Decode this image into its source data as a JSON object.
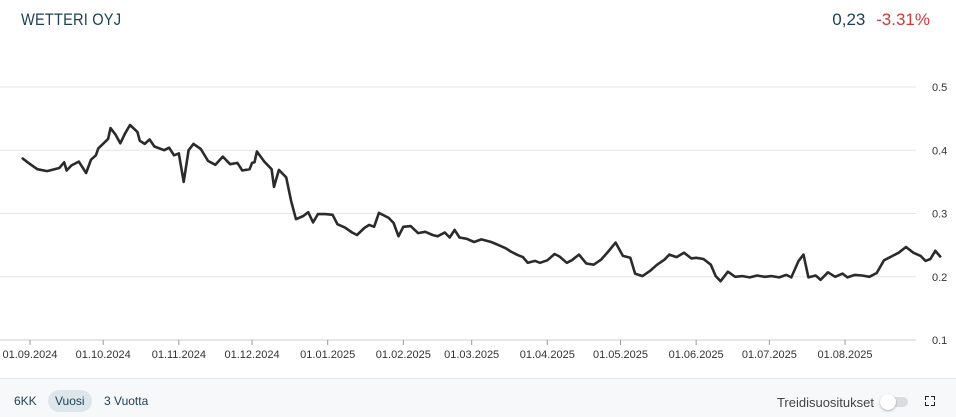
{
  "header": {
    "title": "WETTERI OYJ",
    "price": "0,23",
    "change": "-3.31%"
  },
  "colors": {
    "line": "#2b2b2b",
    "grid": "#e6e6e6",
    "change_negative": "#d0393a",
    "accent": "#1b3f55"
  },
  "footer": {
    "ranges": [
      {
        "label": "6KK",
        "active": false
      },
      {
        "label": "Vuosi",
        "active": true
      },
      {
        "label": "3 Vuotta",
        "active": false
      }
    ],
    "trend_label": "Treidisuositukset",
    "trend_toggle_on": false,
    "fullscreen_icon": "expand-icon"
  },
  "chart_data": {
    "type": "line",
    "ylim": [
      0.1,
      0.5
    ],
    "yticks": [
      0.5,
      0.4,
      0.3,
      0.2,
      0.1
    ],
    "ytick_labels": [
      "0.5",
      "0.4",
      "0.3",
      "0.2",
      "0.1"
    ],
    "xticks": [
      "2024-09-01",
      "2024-10-01",
      "2024-11-01",
      "2024-12-01",
      "2025-01-01",
      "2025-02-01",
      "2025-03-01",
      "2025-04-01",
      "2025-05-01",
      "2025-06-01",
      "2025-07-01",
      "2025-08-01"
    ],
    "xtick_labels": [
      "01.09.2024",
      "01.10.2024",
      "01.11.2024",
      "01.12.2024",
      "01.01.2025",
      "01.02.2025",
      "01.03.2025",
      "01.04.2025",
      "01.05.2025",
      "01.06.2025",
      "01.07.2025",
      "01.08.2025"
    ],
    "grid": true,
    "series": [
      {
        "points": [
          [
            "2024-08-29",
            0.387
          ],
          [
            "2024-08-31",
            0.381
          ],
          [
            "2024-09-04",
            0.37
          ],
          [
            "2024-09-08",
            0.367
          ],
          [
            "2024-09-13",
            0.372
          ],
          [
            "2024-09-15",
            0.381
          ],
          [
            "2024-09-16",
            0.368
          ],
          [
            "2024-09-18",
            0.376
          ],
          [
            "2024-09-21",
            0.382
          ],
          [
            "2024-09-24",
            0.364
          ],
          [
            "2024-09-26",
            0.385
          ],
          [
            "2024-09-28",
            0.392
          ],
          [
            "2024-09-29",
            0.403
          ],
          [
            "2024-10-03",
            0.418
          ],
          [
            "2024-10-04",
            0.435
          ],
          [
            "2024-10-06",
            0.425
          ],
          [
            "2024-10-08",
            0.411
          ],
          [
            "2024-10-10",
            0.427
          ],
          [
            "2024-10-12",
            0.44
          ],
          [
            "2024-10-15",
            0.429
          ],
          [
            "2024-10-16",
            0.415
          ],
          [
            "2024-10-18",
            0.41
          ],
          [
            "2024-10-20",
            0.417
          ],
          [
            "2024-10-22",
            0.406
          ],
          [
            "2024-10-26",
            0.4
          ],
          [
            "2024-10-28",
            0.404
          ],
          [
            "2024-10-30",
            0.392
          ],
          [
            "2024-11-01",
            0.395
          ],
          [
            "2024-11-03",
            0.35
          ],
          [
            "2024-11-05",
            0.4
          ],
          [
            "2024-11-07",
            0.41
          ],
          [
            "2024-11-10",
            0.402
          ],
          [
            "2024-11-13",
            0.383
          ],
          [
            "2024-11-16",
            0.377
          ],
          [
            "2024-11-19",
            0.39
          ],
          [
            "2024-11-22",
            0.378
          ],
          [
            "2024-11-25",
            0.38
          ],
          [
            "2024-11-27",
            0.368
          ],
          [
            "2024-11-30",
            0.37
          ],
          [
            "2024-12-01",
            0.38
          ],
          [
            "2024-12-02",
            0.381
          ],
          [
            "2024-12-03",
            0.398
          ],
          [
            "2024-12-06",
            0.382
          ],
          [
            "2024-12-09",
            0.37
          ],
          [
            "2024-12-10",
            0.342
          ],
          [
            "2024-12-12",
            0.369
          ],
          [
            "2024-12-15",
            0.357
          ],
          [
            "2024-12-17",
            0.32
          ],
          [
            "2024-12-19",
            0.291
          ],
          [
            "2024-12-22",
            0.296
          ],
          [
            "2024-12-24",
            0.302
          ],
          [
            "2024-12-26",
            0.286
          ],
          [
            "2024-12-28",
            0.299
          ],
          [
            "2024-12-31",
            0.299
          ],
          [
            "2025-01-03",
            0.298
          ],
          [
            "2025-01-05",
            0.283
          ],
          [
            "2025-01-08",
            0.278
          ],
          [
            "2025-01-11",
            0.27
          ],
          [
            "2025-01-13",
            0.266
          ],
          [
            "2025-01-16",
            0.277
          ],
          [
            "2025-01-18",
            0.282
          ],
          [
            "2025-01-20",
            0.279
          ],
          [
            "2025-01-22",
            0.301
          ],
          [
            "2025-01-26",
            0.293
          ],
          [
            "2025-01-28",
            0.285
          ],
          [
            "2025-01-30",
            0.264
          ],
          [
            "2025-02-01",
            0.279
          ],
          [
            "2025-02-04",
            0.28
          ],
          [
            "2025-02-07",
            0.269
          ],
          [
            "2025-02-10",
            0.271
          ],
          [
            "2025-02-13",
            0.266
          ],
          [
            "2025-02-15",
            0.264
          ],
          [
            "2025-02-18",
            0.27
          ],
          [
            "2025-02-20",
            0.262
          ],
          [
            "2025-02-22",
            0.274
          ],
          [
            "2025-02-24",
            0.262
          ],
          [
            "2025-02-27",
            0.26
          ],
          [
            "2025-03-02",
            0.255
          ],
          [
            "2025-03-05",
            0.259
          ],
          [
            "2025-03-09",
            0.255
          ],
          [
            "2025-03-12",
            0.25
          ],
          [
            "2025-03-15",
            0.245
          ],
          [
            "2025-03-17",
            0.24
          ],
          [
            "2025-03-20",
            0.234
          ],
          [
            "2025-03-22",
            0.231
          ],
          [
            "2025-03-24",
            0.222
          ],
          [
            "2025-03-27",
            0.225
          ],
          [
            "2025-03-29",
            0.222
          ],
          [
            "2025-04-01",
            0.226
          ],
          [
            "2025-04-04",
            0.236
          ],
          [
            "2025-04-06",
            0.232
          ],
          [
            "2025-04-09",
            0.222
          ],
          [
            "2025-04-11",
            0.226
          ],
          [
            "2025-04-14",
            0.235
          ],
          [
            "2025-04-17",
            0.221
          ],
          [
            "2025-04-20",
            0.219
          ],
          [
            "2025-04-23",
            0.227
          ],
          [
            "2025-04-26",
            0.24
          ],
          [
            "2025-04-29",
            0.254
          ],
          [
            "2025-05-02",
            0.233
          ],
          [
            "2025-05-05",
            0.23
          ],
          [
            "2025-05-07",
            0.205
          ],
          [
            "2025-05-10",
            0.201
          ],
          [
            "2025-05-13",
            0.209
          ],
          [
            "2025-05-16",
            0.219
          ],
          [
            "2025-05-19",
            0.227
          ],
          [
            "2025-05-21",
            0.235
          ],
          [
            "2025-05-24",
            0.231
          ],
          [
            "2025-05-27",
            0.238
          ],
          [
            "2025-05-30",
            0.229
          ],
          [
            "2025-06-01",
            0.23
          ],
          [
            "2025-06-04",
            0.228
          ],
          [
            "2025-06-07",
            0.219
          ],
          [
            "2025-06-09",
            0.201
          ],
          [
            "2025-06-11",
            0.193
          ],
          [
            "2025-06-14",
            0.208
          ],
          [
            "2025-06-17",
            0.2
          ],
          [
            "2025-06-20",
            0.201
          ],
          [
            "2025-06-23",
            0.199
          ],
          [
            "2025-06-26",
            0.202
          ],
          [
            "2025-06-29",
            0.2
          ],
          [
            "2025-07-02",
            0.201
          ],
          [
            "2025-07-05",
            0.199
          ],
          [
            "2025-07-08",
            0.203
          ],
          [
            "2025-07-10",
            0.199
          ],
          [
            "2025-07-13",
            0.225
          ],
          [
            "2025-07-15",
            0.235
          ],
          [
            "2025-07-17",
            0.199
          ],
          [
            "2025-07-20",
            0.202
          ],
          [
            "2025-07-22",
            0.195
          ],
          [
            "2025-07-25",
            0.207
          ],
          [
            "2025-07-28",
            0.2
          ],
          [
            "2025-07-31",
            0.205
          ],
          [
            "2025-08-02",
            0.199
          ],
          [
            "2025-08-05",
            0.203
          ],
          [
            "2025-08-08",
            0.202
          ],
          [
            "2025-08-11",
            0.2
          ],
          [
            "2025-08-14",
            0.206
          ],
          [
            "2025-08-17",
            0.226
          ],
          [
            "2025-08-20",
            0.232
          ],
          [
            "2025-08-23",
            0.238
          ],
          [
            "2025-08-26",
            0.247
          ],
          [
            "2025-08-29",
            0.238
          ],
          [
            "2025-09-01",
            0.233
          ],
          [
            "2025-09-03",
            0.225
          ],
          [
            "2025-09-05",
            0.228
          ],
          [
            "2025-09-07",
            0.241
          ],
          [
            "2025-09-09",
            0.232
          ]
        ]
      }
    ]
  }
}
